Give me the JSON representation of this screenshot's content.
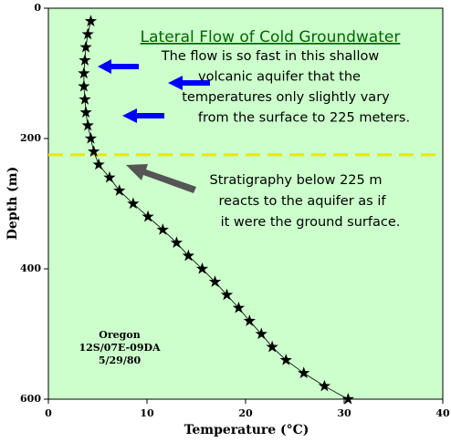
{
  "chart_data": {
    "type": "line",
    "title": "Lateral Flow of Cold Groundwater",
    "annotations": [
      [
        "The flow is so fast in this shallow",
        "volcanic aquifer that the",
        "temperatures only slightly vary",
        "from the surface to 225 meters."
      ],
      [
        "Stratigraphy below 225 m",
        "reacts to the aquifer as if",
        "it were the ground surface."
      ]
    ],
    "location": [
      "Oregon",
      "12S/07E-09DA",
      "5/29/80"
    ],
    "xlabel": "Temperature (°C)",
    "ylabel": "Depth (m)",
    "x": [
      4.3,
      4.0,
      3.8,
      3.7,
      3.6,
      3.6,
      3.7,
      3.8,
      4.0,
      4.3,
      4.6,
      5.1,
      6.2,
      7.2,
      8.6,
      10.1,
      11.6,
      13.0,
      14.2,
      15.6,
      16.9,
      18.1,
      19.3,
      20.4,
      21.6,
      22.7,
      24.1,
      25.9,
      28.0,
      30.4
    ],
    "series": [
      {
        "values": [
          20,
          40,
          60,
          80,
          100,
          120,
          140,
          160,
          180,
          200,
          220,
          240,
          260,
          280,
          300,
          320,
          340,
          360,
          380,
          400,
          420,
          440,
          460,
          480,
          500,
          520,
          540,
          560,
          580,
          600
        ],
        "color": "#000000"
      }
    ],
    "hline": {
      "value": 225,
      "color": "#e8e800"
    },
    "xlim": [
      0,
      40
    ],
    "xticks": [
      0,
      10,
      20,
      30,
      40
    ],
    "ylim": [
      0,
      600
    ],
    "yticks": [
      0,
      200,
      400,
      600
    ],
    "y_inverted": true,
    "background": "#ccffcc"
  }
}
